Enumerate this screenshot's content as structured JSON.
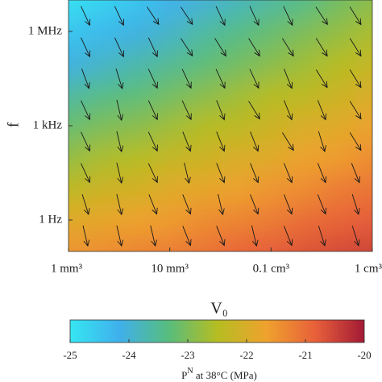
{
  "chart_data": {
    "type": "heatmap-quiver",
    "xlabel": "V₀",
    "ylabel": "f",
    "xscale": "log",
    "yscale": "log",
    "xlim": [
      1,
      1000
    ],
    "ylim": [
      0.1,
      10000000
    ],
    "xticks": [
      {
        "value": 1,
        "label": "1 mm³"
      },
      {
        "value": 10,
        "label": "10 mm³"
      },
      {
        "value": 100,
        "label": "0.1 cm³"
      },
      {
        "value": 1000,
        "label": "1 cm³"
      }
    ],
    "yticks": [
      {
        "value": 1,
        "label": "1 Hz"
      },
      {
        "value": 1000,
        "label": "1 kHz"
      },
      {
        "value": 1000000,
        "label": "1 MHz"
      }
    ],
    "z": [
      [
        -24.9,
        -24.7,
        -24.5,
        -24.2,
        -24.0,
        -23.8,
        -23.6,
        -23.4,
        -23.1,
        -22.9
      ],
      [
        -24.5,
        -24.3,
        -24.1,
        -23.9,
        -23.6,
        -23.4,
        -23.2,
        -23.0,
        -22.8,
        -22.6
      ],
      [
        -24.1,
        -23.9,
        -23.7,
        -23.5,
        -23.3,
        -23.1,
        -22.9,
        -22.7,
        -22.5,
        -22.3
      ],
      [
        -23.6,
        -23.4,
        -23.3,
        -23.1,
        -22.9,
        -22.7,
        -22.5,
        -22.4,
        -22.2,
        -22.0
      ],
      [
        -23.2,
        -23.0,
        -22.9,
        -22.7,
        -22.5,
        -22.4,
        -22.2,
        -22.0,
        -21.9,
        -21.7
      ],
      [
        -22.8,
        -22.6,
        -22.5,
        -22.3,
        -22.2,
        -22.0,
        -21.9,
        -21.7,
        -21.6,
        -21.4
      ],
      [
        -22.4,
        -22.2,
        -22.1,
        -21.9,
        -21.8,
        -21.7,
        -21.5,
        -21.4,
        -21.2,
        -21.1
      ],
      [
        -21.9,
        -21.8,
        -21.7,
        -21.6,
        -21.4,
        -21.3,
        -21.2,
        -21.0,
        -20.9,
        -20.8
      ],
      [
        -21.5,
        -21.4,
        -21.3,
        -21.2,
        -21.1,
        -20.9,
        -20.8,
        -20.7,
        -20.6,
        -20.5
      ]
    ],
    "clim": [
      -25,
      -20
    ],
    "cticks": [
      -25,
      -24,
      -23,
      -22,
      -21,
      -20
    ],
    "colormap": [
      "#36e6f2",
      "#3fb0ec",
      "#57bd7e",
      "#b5bd22",
      "#efa22d",
      "#e8603a",
      "#a31a35"
    ],
    "arrow_color": "#1a1a1a",
    "colorbar_label": {
      "base": "P",
      "sup": "N",
      "rest": " at 38°C (MPa)"
    }
  }
}
